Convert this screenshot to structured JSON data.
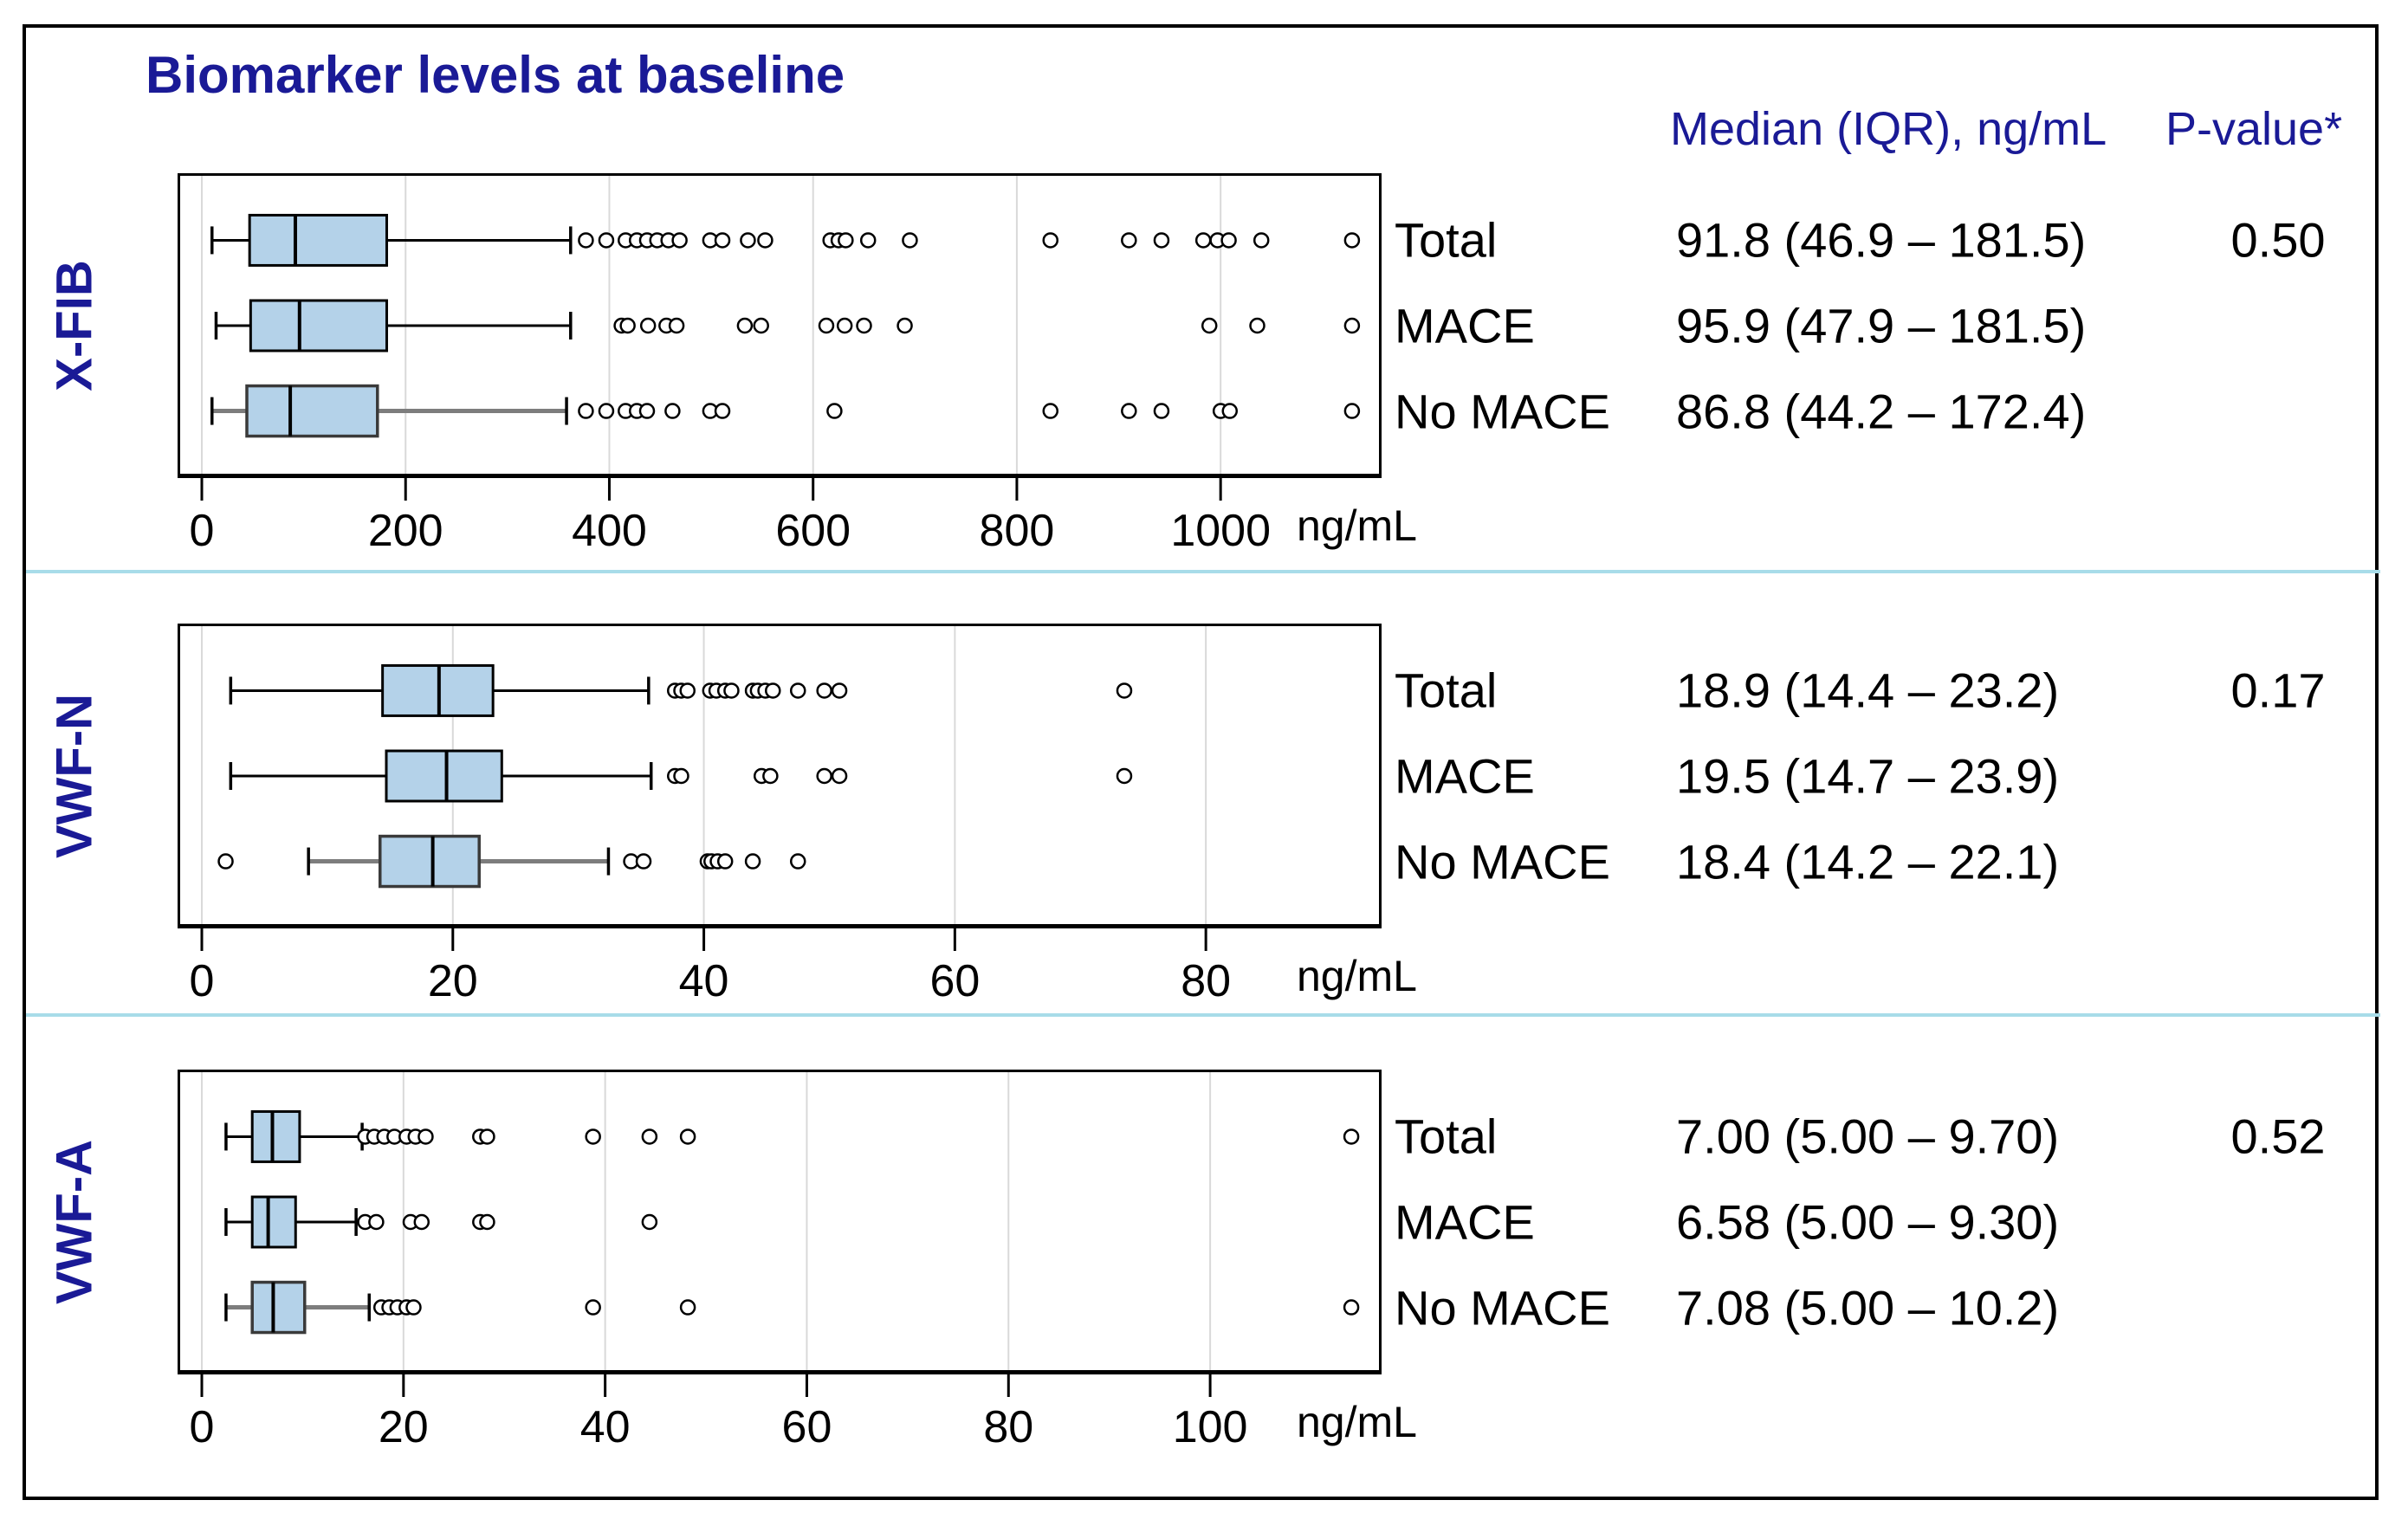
{
  "title": "Biomarker levels at baseline",
  "header": {
    "median": "Median (IQR), ng/mL",
    "pvalue": "P-value*"
  },
  "colors": {
    "accent_navy": "#1a1a96",
    "box_fill": "#b4d2e9",
    "box_stroke": "#000000",
    "gridline": "#d9d9d9",
    "separator": "#a8dce9",
    "outlier_stroke": "#000000",
    "muted_whisker": "#7d7d7d"
  },
  "chart_data": [
    {
      "type": "boxplot",
      "panel_label": "X-FIB",
      "pvalue": "0.50",
      "axis": {
        "min": 0,
        "max": 1158,
        "ticks": [
          0,
          200,
          400,
          600,
          800,
          1000
        ],
        "unit": "ng/mL",
        "grid": true
      },
      "rows": [
        {
          "label": "Total",
          "median_text": "91.8 (46.9 – 181.5)",
          "whisker_low": 10,
          "q1": 46.9,
          "median": 91.8,
          "q3": 181.5,
          "whisker_high": 362,
          "outliers": [
            377,
            397,
            416,
            427,
            437,
            447,
            458,
            469,
            499,
            511,
            536,
            553,
            617,
            625,
            632,
            654,
            695,
            833,
            910,
            942,
            983,
            997,
            1008,
            1040,
            1129
          ]
        },
        {
          "label": "MACE",
          "median_text": "95.9 (47.9 – 181.5)",
          "whisker_low": 14,
          "q1": 47.9,
          "median": 95.9,
          "q3": 181.5,
          "whisker_high": 362,
          "outliers": [
            412,
            418,
            438,
            456,
            466,
            533,
            549,
            613,
            631,
            650,
            690,
            989,
            1036,
            1129
          ]
        },
        {
          "label": "No MACE",
          "median_text": "86.8 (44.2 – 172.4)",
          "whisker_low": 10,
          "q1": 44.2,
          "median": 86.8,
          "q3": 172.4,
          "whisker_high": 358,
          "outliers": [
            377,
            397,
            416,
            427,
            437,
            462,
            499,
            511,
            621,
            833,
            910,
            942,
            1000,
            1009,
            1129
          ]
        }
      ]
    },
    {
      "type": "boxplot",
      "panel_label": "VWF-N",
      "pvalue": "0.17",
      "axis": {
        "min": 0,
        "max": 94,
        "ticks": [
          0,
          20,
          40,
          60,
          80
        ],
        "unit": "ng/mL",
        "grid": true
      },
      "rows": [
        {
          "label": "Total",
          "median_text": "18.9 (14.4 – 23.2)",
          "whisker_low": 2.3,
          "q1": 14.4,
          "median": 18.9,
          "q3": 23.2,
          "whisker_high": 35.6,
          "outliers": [
            37.7,
            38.2,
            38.7,
            40.5,
            41.0,
            41.7,
            42.2,
            43.9,
            44.3,
            44.9,
            45.5,
            47.5,
            49.6,
            50.8,
            73.5
          ]
        },
        {
          "label": "MACE",
          "median_text": "19.5 (14.7 – 23.9)",
          "whisker_low": 2.3,
          "q1": 14.7,
          "median": 19.5,
          "q3": 23.9,
          "whisker_high": 35.8,
          "outliers": [
            37.7,
            38.2,
            44.6,
            45.3,
            49.6,
            50.8,
            73.5
          ]
        },
        {
          "label": "No MACE",
          "median_text": "18.4 (14.2 – 22.1)",
          "whisker_low": 8.5,
          "q1": 14.2,
          "median": 18.4,
          "q3": 22.1,
          "whisker_high": 32.4,
          "outliers": [
            1.9,
            34.2,
            35.2,
            40.3,
            40.6,
            41.1,
            41.7,
            43.9,
            47.5
          ]
        }
      ]
    },
    {
      "type": "boxplot",
      "panel_label": "VWF-A",
      "pvalue": "0.52",
      "axis": {
        "min": 0,
        "max": 117,
        "ticks": [
          0,
          20,
          40,
          60,
          80,
          100
        ],
        "unit": "ng/mL",
        "grid": true
      },
      "rows": [
        {
          "label": "Total",
          "median_text": "7.00 (5.00 – 9.70)",
          "whisker_low": 2.4,
          "q1": 5.0,
          "median": 7.0,
          "q3": 9.7,
          "whisker_high": 15.9,
          "outliers": [
            16.2,
            17.1,
            18.1,
            19.1,
            20.3,
            21.2,
            22.2,
            27.6,
            28.3,
            38.8,
            44.4,
            48.2,
            114
          ]
        },
        {
          "label": "MACE",
          "median_text": "6.58 (5.00 – 9.30)",
          "whisker_low": 2.4,
          "q1": 5.0,
          "median": 6.58,
          "q3": 9.3,
          "whisker_high": 15.3,
          "outliers": [
            16.2,
            17.3,
            20.7,
            21.8,
            27.6,
            28.3,
            44.4
          ]
        },
        {
          "label": "No MACE",
          "median_text": "7.08 (5.00 – 10.2)",
          "whisker_low": 2.4,
          "q1": 5.0,
          "median": 7.08,
          "q3": 10.2,
          "whisker_high": 16.6,
          "outliers": [
            17.8,
            18.6,
            19.4,
            20.3,
            21.0,
            38.8,
            48.2,
            114
          ]
        }
      ]
    }
  ]
}
